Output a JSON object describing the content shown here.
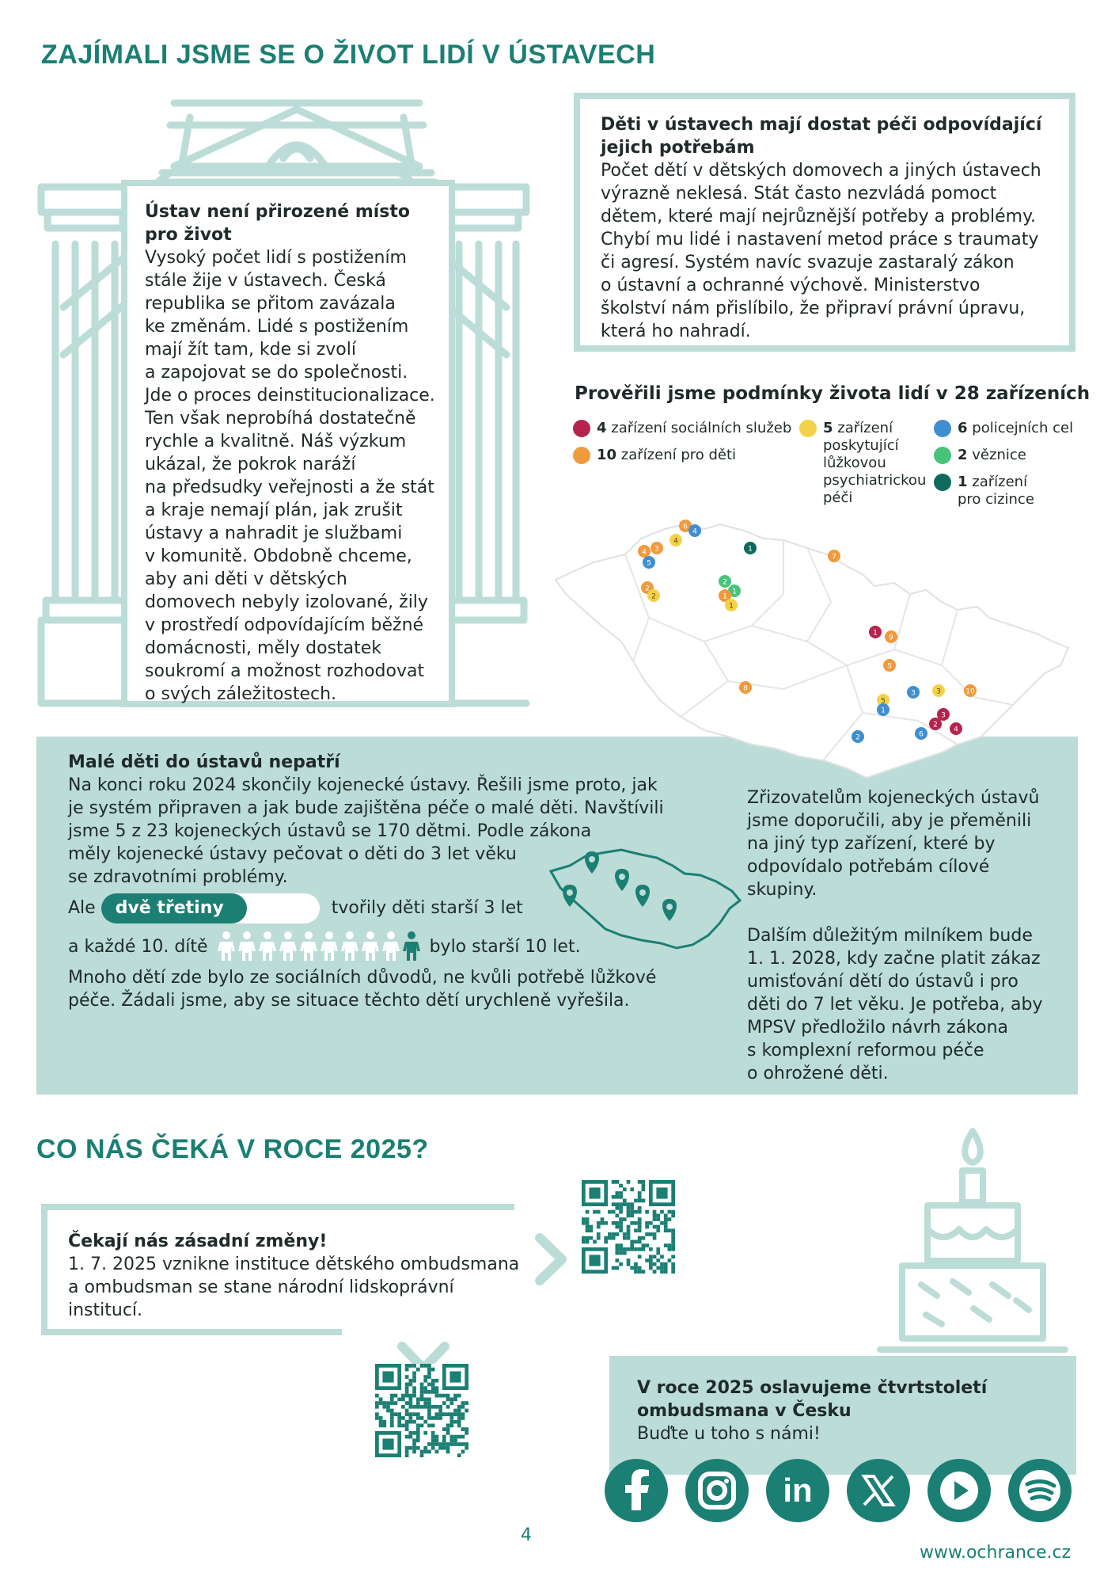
{
  "page": {
    "title": "ZAJÍMALI JSME SE O ŽIVOT LIDÍ V ÚSTAVECH",
    "page_number": "4",
    "website": "www.ochrance.cz"
  },
  "institutions": {
    "heading_line1": "Ústav není přirozené místo",
    "heading_line2": "pro život",
    "lines": [
      "Vysoký počet lidí s postižením",
      "stále žije v ústavech. Česká",
      "republika se přitom zavázala",
      "ke změnám. Lidé s postižením",
      "mají žít tam, kde si zvolí",
      "a zapojovat se do společnosti.",
      "Jde o proces deinstitucionalizace.",
      "Ten však neprobíhá dostatečně",
      "rychle a kvalitně. Náš výzkum",
      "ukázal, že pokrok naráží",
      "na předsudky veřejnosti a že stát",
      "a kraje nemají plán, jak zrušit",
      "ústavy a nahradit je službami",
      "v komunitě. Obdobně chceme,",
      "aby ani děti v dětských",
      "domovech nebyly izolované, žily",
      "v prostředí odpovídajícím běžné",
      "domácnosti, měly dostatek",
      "soukromí a možnost rozhodovat",
      "o svých záležitostech."
    ]
  },
  "children_box": {
    "heading_line1": "Děti v ústavech mají dostat péči odpovídající",
    "heading_line2": "jejich potřebám",
    "lines": [
      "Počet dětí v dětských domovech a jiných ústavech",
      "výrazně neklesá. Stát často nezvládá pomoct",
      "dětem, které mají nejrůznější potřeby a problémy.",
      "Chybí mu lidé i nastavení metod práce s traumaty",
      "či agresí. Systém navíc svazuje zastaralý zákon",
      "o ústavní a ochranné výchově. Ministerstvo",
      "školství nám přislíbilo, že připraví právní úpravu,",
      "která ho nahradí."
    ]
  },
  "facilities": {
    "heading": "Prověřili jsme podmínky života lidí v 28 zařízeních",
    "legend": [
      {
        "count": "4",
        "label": "zařízení sociálních služeb",
        "color": "#b5234e"
      },
      {
        "count": "10",
        "label": "zařízení pro děti",
        "color": "#ef9a3c"
      },
      {
        "count": "5",
        "label": "zařízení poskytující lůžkovou psychiatrickou péči",
        "label_lines": [
          "zařízení",
          "poskytující",
          "lůžkovou",
          "psychiatrickou",
          "péči"
        ],
        "color": "#f3d24a"
      },
      {
        "count": "6",
        "label": "policejních cel",
        "color": "#3f8fd0"
      },
      {
        "count": "2",
        "label": "věznice",
        "color": "#48c47a"
      },
      {
        "count": "1",
        "label": "zařízení pro cizince",
        "label_lines": [
          "zařízení",
          "pro cizince"
        ],
        "color": "#0e6b5c"
      }
    ],
    "map_markers": [
      {
        "n": "6",
        "color": "#ef9a3c"
      },
      {
        "n": "4",
        "color": "#3f8fd0"
      },
      {
        "n": "4",
        "color": "#f3d24a"
      },
      {
        "n": "4",
        "color": "#ef9a3c"
      },
      {
        "n": "3",
        "color": "#ef9a3c"
      },
      {
        "n": "5",
        "color": "#3f8fd0"
      },
      {
        "n": "1",
        "color": "#0e6b5c"
      },
      {
        "n": "7",
        "color": "#ef9a3c"
      },
      {
        "n": "2",
        "color": "#ef9a3c"
      },
      {
        "n": "2",
        "color": "#f3d24a"
      },
      {
        "n": "2",
        "color": "#48c47a"
      },
      {
        "n": "1",
        "color": "#48c47a"
      },
      {
        "n": "1",
        "color": "#ef9a3c"
      },
      {
        "n": "1",
        "color": "#f3d24a"
      },
      {
        "n": "1",
        "color": "#b5234e"
      },
      {
        "n": "9",
        "color": "#ef9a3c"
      },
      {
        "n": "5",
        "color": "#ef9a3c"
      },
      {
        "n": "8",
        "color": "#ef9a3c"
      },
      {
        "n": "5",
        "color": "#f3d24a"
      },
      {
        "n": "1",
        "color": "#3f8fd0"
      },
      {
        "n": "3",
        "color": "#3f8fd0"
      },
      {
        "n": "3",
        "color": "#f3d24a"
      },
      {
        "n": "10",
        "color": "#ef9a3c"
      },
      {
        "n": "2",
        "color": "#b5234e"
      },
      {
        "n": "3",
        "color": "#b5234e"
      },
      {
        "n": "6",
        "color": "#3f8fd0"
      },
      {
        "n": "4",
        "color": "#b5234e"
      },
      {
        "n": "2",
        "color": "#3f8fd0"
      }
    ]
  },
  "small_children": {
    "heading": "Malé děti do ústavů nepatří",
    "lines": [
      "Na konci roku 2024 skončily kojenecké ústavy. Řešili jsme proto, jak",
      "je systém připraven a jak bude zajištěna péče o malé děti. Navštívili",
      "jsme 5 z 23 kojeneckých ústavů se 170 dětmi. Podle zákona",
      "měly kojenecké ústavy pečovat o děti do 3 let věku",
      "se zdravotními problémy."
    ],
    "two_thirds_prefix": "Ale",
    "two_thirds_label": "dvě třetiny",
    "two_thirds_fraction": 0.667,
    "two_thirds_suffix": "tvořily děti starší 3 let",
    "tenth_prefix": "a každé 10. dítě",
    "tenth_suffix": "bylo starší 10 let.",
    "tenth_icons_total": 10,
    "tenth_icons_highlighted": 1,
    "closing_lines": [
      "Mnoho dětí zde bylo ze sociálních důvodů, ne kvůli potřebě lůžkové",
      "péče. Žádali jsme, aby se situace těchto dětí urychleně vyřešila."
    ],
    "map_pins": 5,
    "right_para1": [
      "Zřizovatelům kojeneckých ústavů",
      "jsme doporučili, aby je přeměnili",
      "na jiný typ zařízení, které by",
      "odpovídalo potřebám cílové",
      "skupiny."
    ],
    "right_para2": [
      "Dalším důležitým milníkem bude",
      "1. 1. 2028, kdy začne platit zákaz",
      "umisťování dětí do ústavů i pro",
      "děti do 7 let věku. Je potřeba, aby",
      "MPSV předložilo návrh zákona",
      "s komplexní reformou péče",
      "o ohrožené děti."
    ]
  },
  "future": {
    "title": "CO NÁS ČEKÁ V ROCE 2025?",
    "changes_heading": "Čekají nás zásadní změny!",
    "changes_lines": [
      "1. 7. 2025 vznikne instituce dětského ombudsmana",
      "a ombudsman se stane národní lidskoprávní",
      "institucí."
    ],
    "anniversary_line1": "V roce 2025 oslavujeme čtvrtstoletí",
    "anniversary_line2": "ombudsmana v Česku",
    "anniversary_sub": "Buďte u toho s námi!"
  },
  "social": [
    "facebook-icon",
    "instagram-icon",
    "linkedin-icon",
    "x-icon",
    "youtube-icon",
    "spotify-icon"
  ],
  "colors": {
    "teal": "#1b7f73",
    "light_teal": "#bcdcd7",
    "text": "#1f2a2a"
  }
}
